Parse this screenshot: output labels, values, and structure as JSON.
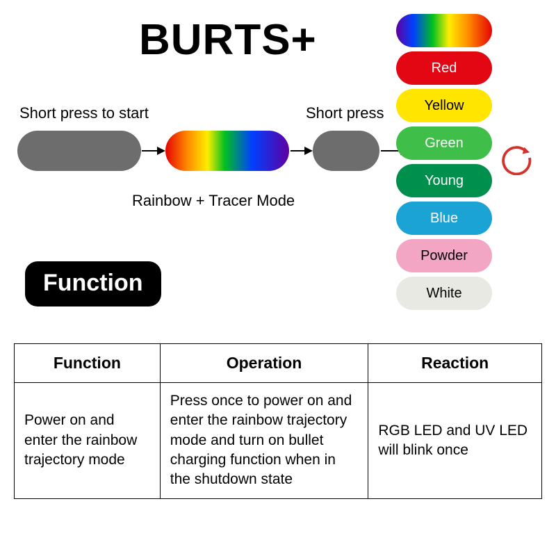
{
  "title": "BURTS+",
  "flow": {
    "start_label": "Short press to start",
    "short_label": "Short press",
    "caption": "Rainbow + Tracer Mode",
    "grey_color": "#6d6d6d",
    "rainbow_gradient": [
      "#e40303",
      "#ff8c00",
      "#ffed00",
      "#00c020",
      "#0040ff",
      "#6000a0"
    ]
  },
  "color_stack": {
    "pill_width": 138,
    "pill_height": 48,
    "items": [
      {
        "label": "",
        "bg": "rainbow",
        "fg": "#000000"
      },
      {
        "label": "Red",
        "bg": "#e30613",
        "fg": "#ffffff"
      },
      {
        "label": "Yellow",
        "bg": "#ffe500",
        "fg": "#000000"
      },
      {
        "label": "Green",
        "bg": "#3fbf4a",
        "fg": "#ffffff"
      },
      {
        "label": "Young",
        "bg": "#008f4c",
        "fg": "#ffffff"
      },
      {
        "label": "Blue",
        "bg": "#1ba3d6",
        "fg": "#ffffff"
      },
      {
        "label": "Powder",
        "bg": "#f3a6c4",
        "fg": "#000000"
      },
      {
        "label": "White",
        "bg": "#e9e9e4",
        "fg": "#000000"
      }
    ],
    "cycle_icon_color": "#d4322c"
  },
  "function_badge": "Function",
  "table": {
    "columns": [
      "Function",
      "Operation",
      "Reaction"
    ],
    "rows": [
      [
        "Power on and enter the rainbow trajectory mode",
        "Press once to power on and enter the rainbow trajectory mode and turn on bullet charging function when in the shutdown state",
        "RGB LED and UV LED will blink once"
      ]
    ],
    "border_color": "#000000",
    "header_fontsize": 23,
    "body_fontsize": 21
  }
}
